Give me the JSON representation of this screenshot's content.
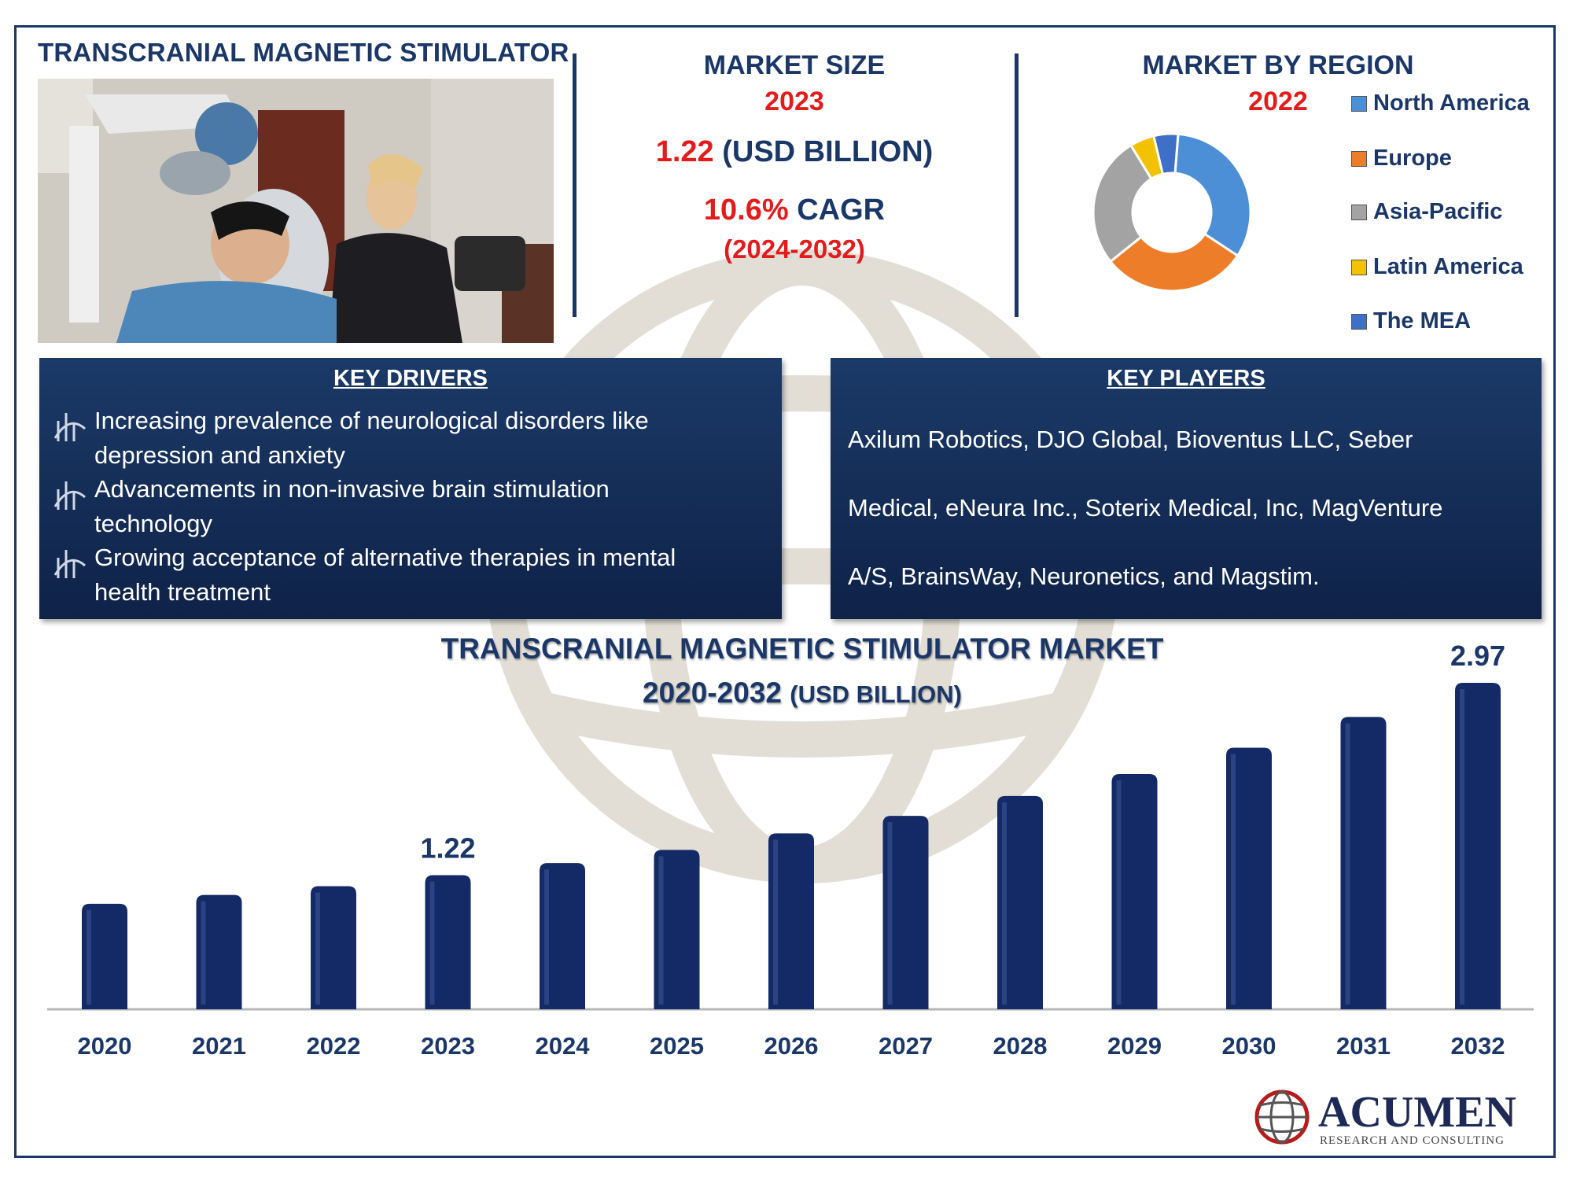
{
  "header": {
    "title": "TRANSCRANIAL MAGNETIC STIMULATOR"
  },
  "market_size": {
    "heading": "MARKET SIZE",
    "year": "2023",
    "value": "1.22",
    "unit": "(USD BILLION)",
    "cagr_value": "10.6%",
    "cagr_label": "CAGR",
    "cagr_period": "(2024-2032)"
  },
  "market_by_region": {
    "heading": "MARKET BY REGION",
    "year": "2022",
    "legend": [
      {
        "label": "North America",
        "color": "#4d8fd6"
      },
      {
        "label": "Europe",
        "color": "#ee7d2a"
      },
      {
        "label": "Asia-Pacific",
        "color": "#a3a3a3"
      },
      {
        "label": "Latin America",
        "color": "#f2c200"
      },
      {
        "label": "The MEA",
        "color": "#3f6fc7"
      }
    ],
    "slice_shares": [
      0.33,
      0.3,
      0.27,
      0.05,
      0.05
    ]
  },
  "key_drivers": {
    "title": "KEY DRIVERS",
    "items": [
      {
        "line1": "Increasing prevalence of neurological disorders like",
        "line2": "depression and anxiety"
      },
      {
        "line1": "Advancements in non-invasive brain stimulation",
        "line2": "technology"
      },
      {
        "line1": "Growing acceptance of alternative therapies in mental",
        "line2": "health treatment"
      }
    ]
  },
  "key_players": {
    "title": "KEY PLAYERS",
    "lines": [
      "Axilum Robotics, DJO Global, Bioventus LLC, Seber",
      "Medical, eNeura Inc., Soterix Medical, Inc, MagVenture",
      "A/S, BrainsWay, Neuronetics, and Magstim."
    ]
  },
  "chart_title": {
    "line1": "TRANSCRANIAL MAGNETIC STIMULATOR MARKET",
    "line2_main": "2020-2032",
    "line2_unit": "(USD BILLION)"
  },
  "chart_data": {
    "type": "bar",
    "title": "TRANSCRANIAL MAGNETIC STIMULATOR MARKET 2020-2032 (USD BILLION)",
    "categories": [
      "2020",
      "2021",
      "2022",
      "2023",
      "2024",
      "2025",
      "2026",
      "2027",
      "2028",
      "2029",
      "2030",
      "2031",
      "2032"
    ],
    "values": [
      0.96,
      1.04,
      1.12,
      1.22,
      1.33,
      1.45,
      1.6,
      1.76,
      1.94,
      2.14,
      2.38,
      2.66,
      2.97
    ],
    "data_labels": {
      "3": "1.22",
      "12": "2.97"
    },
    "ylim": [
      0,
      2.97
    ],
    "bar_color": "#142a66",
    "grid": false
  },
  "footer": {
    "brand": "ACUMEN",
    "tagline": "RESEARCH AND CONSULTING"
  }
}
